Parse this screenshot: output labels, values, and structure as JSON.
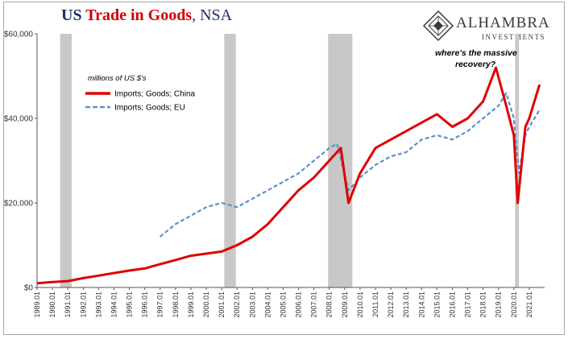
{
  "title": {
    "part1": "US ",
    "part2": "Trade in Goods",
    "part3": ", NSA"
  },
  "logo": {
    "name": "ALHAMBRA",
    "sub": "INVESTMENTS"
  },
  "chart_data": {
    "type": "line",
    "title": "US Trade in Goods, NSA",
    "legend_title": "millions of US $'s",
    "legend_position": "top-left",
    "annotation": "where's the massive recovery?",
    "annotation_lines": [
      "where's the massive",
      "recovery?"
    ],
    "ylim": [
      0,
      60000
    ],
    "y_ticks": [
      0,
      20000,
      40000,
      60000
    ],
    "y_tick_labels": [
      "$0",
      "$20,000",
      "$40,000",
      "$60,000"
    ],
    "x_tick_labels": [
      "1989.01",
      "1990.01",
      "1991.01",
      "1992.01",
      "1993.01",
      "1994.01",
      "1995.01",
      "1996.01",
      "1997.01",
      "1998.01",
      "1999.01",
      "2000.01",
      "2001.01",
      "2002.01",
      "2003.01",
      "2004.01",
      "2005.01",
      "2006.01",
      "2007.01",
      "2008.01",
      "2009.01",
      "2010.01",
      "2011.01",
      "2012.01",
      "2013.01",
      "2014.01",
      "2015.01",
      "2016.01",
      "2017.01",
      "2018.01",
      "2019.01",
      "2020.01",
      "2021.01"
    ],
    "recessions": [
      [
        1990.5,
        1991.25
      ],
      [
        2001.17,
        2001.92
      ],
      [
        2007.92,
        2009.5
      ],
      [
        2020.08,
        2020.33
      ]
    ],
    "colors": {
      "china": "#e00000",
      "eu": "#5b8fd0",
      "recession": "#c8c8c8"
    },
    "series": [
      {
        "name": "Imports; Goods; China",
        "style": "solid",
        "x": [
          1989.0,
          1990.0,
          1991.0,
          1992.0,
          1993.0,
          1994.0,
          1995.0,
          1996.0,
          1997.0,
          1998.0,
          1999.0,
          2000.0,
          2001.0,
          2002.0,
          2003.0,
          2004.0,
          2005.0,
          2006.0,
          2007.0,
          2008.0,
          2008.75,
          2009.25,
          2010.0,
          2011.0,
          2012.0,
          2013.0,
          2014.0,
          2015.0,
          2016.0,
          2017.0,
          2018.0,
          2018.83,
          2019.5,
          2020.0,
          2020.25,
          2020.75,
          2021.0,
          2021.67
        ],
        "y": [
          1000,
          1300,
          1500,
          2200,
          2800,
          3400,
          4000,
          4500,
          5500,
          6500,
          7500,
          8000,
          8500,
          10000,
          12000,
          15000,
          19000,
          23000,
          26000,
          30000,
          33000,
          20000,
          27000,
          33000,
          35000,
          37000,
          39000,
          41000,
          38000,
          40000,
          44000,
          52000,
          43000,
          36000,
          20000,
          38000,
          40000,
          48000
        ]
      },
      {
        "name": "Imports; Goods; EU",
        "style": "dashed",
        "x": [
          1997.0,
          1998.0,
          1999.0,
          2000.0,
          2001.0,
          2002.0,
          2003.0,
          2004.0,
          2005.0,
          2006.0,
          2007.0,
          2008.0,
          2008.5,
          2009.25,
          2010.0,
          2011.0,
          2012.0,
          2013.0,
          2014.0,
          2015.0,
          2016.0,
          2017.0,
          2018.0,
          2019.0,
          2019.5,
          2020.0,
          2020.33,
          2020.75,
          2021.0,
          2021.67
        ],
        "y": [
          12000,
          15000,
          17000,
          19000,
          20000,
          19000,
          21000,
          23000,
          25000,
          27000,
          30000,
          33000,
          34000,
          23000,
          26000,
          29000,
          31000,
          32000,
          35000,
          36000,
          35000,
          37000,
          40000,
          43000,
          46000,
          40000,
          27000,
          36000,
          38000,
          42000
        ]
      }
    ]
  }
}
